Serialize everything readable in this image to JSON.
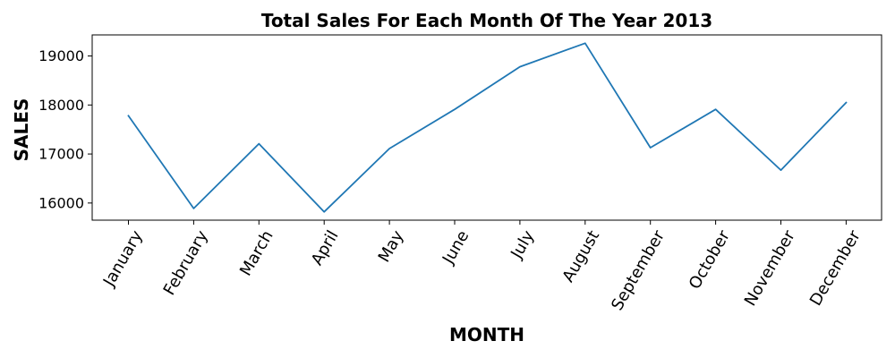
{
  "chart_data": {
    "type": "line",
    "title": "Total Sales For Each Month Of The Year 2013",
    "xlabel": "MONTH",
    "ylabel": "SALES",
    "categories": [
      "January",
      "February",
      "March",
      "April",
      "May",
      "June",
      "July",
      "August",
      "September",
      "October",
      "November",
      "December"
    ],
    "series": [
      {
        "values": [
          17780,
          15890,
          17210,
          15820,
          17110,
          17910,
          18780,
          19260,
          17130,
          17910,
          16670,
          18050
        ],
        "color": "#1f77b4"
      }
    ],
    "ylim": [
      15650,
      19430
    ],
    "yticks": [
      16000,
      17000,
      18000,
      19000
    ],
    "ytick_labels": [
      "16000",
      "17000",
      "18000",
      "19000"
    ],
    "grid": false,
    "legend": "none",
    "xtick_rotation_deg": 60
  }
}
